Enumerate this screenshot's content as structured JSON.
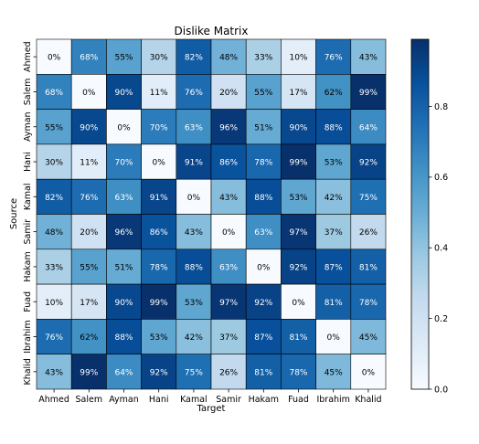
{
  "chart_data": {
    "type": "heatmap",
    "title": "Dislike Matrix",
    "xlabel": "Target",
    "ylabel": "Source",
    "x_categories": [
      "Ahmed",
      "Salem",
      "Ayman",
      "Hani",
      "Kamal",
      "Samir",
      "Hakam",
      "Fuad",
      "Ibrahim",
      "Khalid"
    ],
    "y_categories": [
      "Ahmed",
      "Salem",
      "Ayman",
      "Hani",
      "Kamal",
      "Samir",
      "Hakam",
      "Fuad",
      "Ibrahim",
      "Khalid"
    ],
    "values": [
      [
        0.0,
        0.68,
        0.55,
        0.3,
        0.82,
        0.48,
        0.33,
        0.1,
        0.76,
        0.43
      ],
      [
        0.68,
        0.0,
        0.9,
        0.11,
        0.76,
        0.2,
        0.55,
        0.17,
        0.62,
        0.99
      ],
      [
        0.55,
        0.9,
        0.0,
        0.7,
        0.63,
        0.96,
        0.51,
        0.9,
        0.88,
        0.64
      ],
      [
        0.3,
        0.11,
        0.7,
        0.0,
        0.91,
        0.86,
        0.78,
        0.99,
        0.53,
        0.92
      ],
      [
        0.82,
        0.76,
        0.63,
        0.91,
        0.0,
        0.43,
        0.88,
        0.53,
        0.42,
        0.75
      ],
      [
        0.48,
        0.2,
        0.96,
        0.86,
        0.43,
        0.0,
        0.63,
        0.97,
        0.37,
        0.26
      ],
      [
        0.33,
        0.55,
        0.51,
        0.78,
        0.88,
        0.63,
        0.0,
        0.92,
        0.87,
        0.81
      ],
      [
        0.1,
        0.17,
        0.9,
        0.99,
        0.53,
        0.97,
        0.92,
        0.0,
        0.81,
        0.78
      ],
      [
        0.76,
        0.62,
        0.88,
        0.53,
        0.42,
        0.37,
        0.87,
        0.81,
        0.0,
        0.45
      ],
      [
        0.43,
        0.99,
        0.64,
        0.92,
        0.75,
        0.26,
        0.81,
        0.78,
        0.45,
        0.0
      ]
    ],
    "value_format": "percent",
    "colormap": "Blues",
    "colorbar": {
      "range": [
        0,
        0.99
      ],
      "ticks": [
        0.0,
        0.2,
        0.4,
        0.6,
        0.8
      ],
      "tick_labels": [
        "0.0",
        "0.2",
        "0.4",
        "0.6",
        "0.8"
      ]
    },
    "grid": false,
    "cell_border_color": "#000000"
  }
}
